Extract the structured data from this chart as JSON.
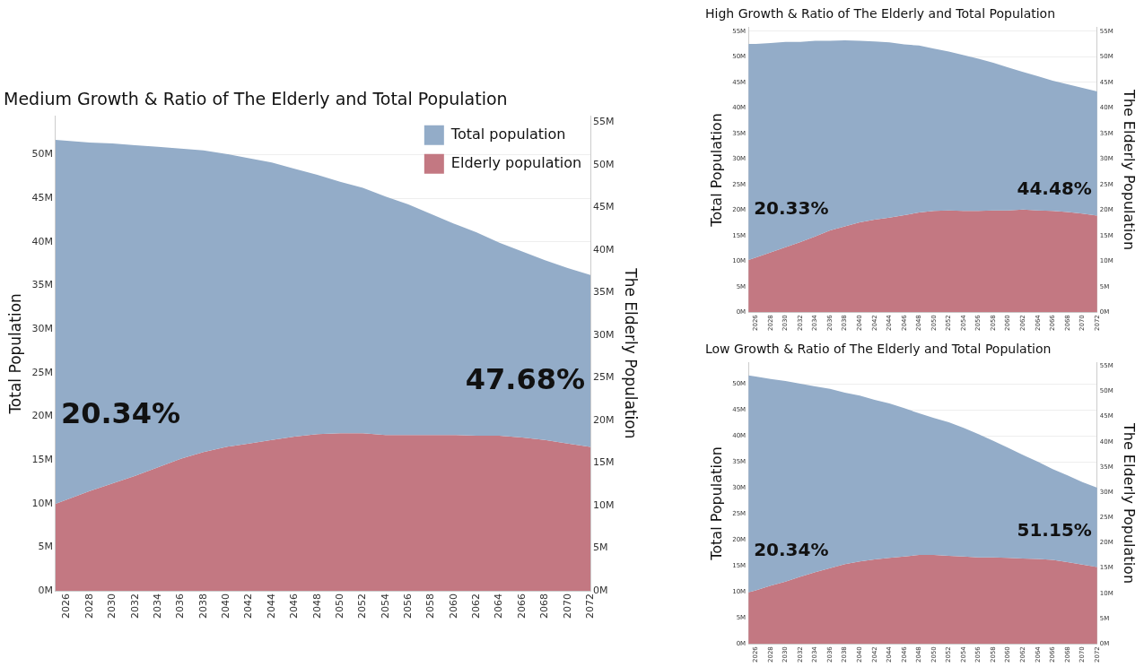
{
  "chart_data": [
    {
      "type": "area",
      "title": "Medium Growth & Ratio of The Elderly and Total Population",
      "ylabel": "Total Population",
      "y2label": "The Elderly Population",
      "legend": "top right",
      "grid": "y",
      "marker": "none",
      "x": [
        2025,
        2026,
        2028,
        2030,
        2032,
        2034,
        2036,
        2038,
        2040,
        2042,
        2044,
        2046,
        2048,
        2050,
        2052,
        2054,
        2056,
        2058,
        2060,
        2062,
        2064,
        2066,
        2068,
        2070,
        2072
      ],
      "xlim": [
        2025,
        2072
      ],
      "xticks": [
        2026,
        2028,
        2030,
        2032,
        2034,
        2036,
        2038,
        2040,
        2042,
        2044,
        2046,
        2048,
        2050,
        2052,
        2054,
        2056,
        2058,
        2060,
        2062,
        2064,
        2066,
        2068,
        2070,
        2072
      ],
      "ylim": [
        0,
        54.4
      ],
      "yticks": [
        {
          "value": 0,
          "label": "0M"
        },
        {
          "value": 5,
          "label": "5M"
        },
        {
          "value": 10,
          "label": "10M"
        },
        {
          "value": 15,
          "label": "15M"
        },
        {
          "value": 20,
          "label": "20M"
        },
        {
          "value": 25,
          "label": "25M"
        },
        {
          "value": 30,
          "label": "30M"
        },
        {
          "value": 35,
          "label": "35M"
        },
        {
          "value": 40,
          "label": "40M"
        },
        {
          "value": 45,
          "label": "45M"
        },
        {
          "value": 50,
          "label": "50M"
        }
      ],
      "y2lim": [
        0,
        55.7
      ],
      "y2ticks": [
        {
          "value": 0,
          "label": "0M"
        },
        {
          "value": 5,
          "label": "5M"
        },
        {
          "value": 10,
          "label": "10M"
        },
        {
          "value": 15,
          "label": "15M"
        },
        {
          "value": 20,
          "label": "20M"
        },
        {
          "value": 25,
          "label": "25M"
        },
        {
          "value": 30,
          "label": "30M"
        },
        {
          "value": 35,
          "label": "35M"
        },
        {
          "value": 40,
          "label": "40M"
        },
        {
          "value": 45,
          "label": "45M"
        },
        {
          "value": 50,
          "label": "50M"
        },
        {
          "value": 55,
          "label": "55M"
        }
      ],
      "series": [
        {
          "name": "Total population",
          "color": "#93acc8",
          "values": [
            51.7,
            51.6,
            51.4,
            51.3,
            51.1,
            50.9,
            50.7,
            50.5,
            50.1,
            49.6,
            49.1,
            48.4,
            47.7,
            46.9,
            46.2,
            45.2,
            44.3,
            43.2,
            42.1,
            41.1,
            39.9,
            38.9,
            37.9,
            37.0,
            36.2
          ]
        },
        {
          "name": "Elderly population",
          "color": "#c37882",
          "axis": "y2",
          "values": [
            10.2,
            10.7,
            11.7,
            12.6,
            13.5,
            14.5,
            15.5,
            16.3,
            16.9,
            17.3,
            17.7,
            18.1,
            18.4,
            18.5,
            18.5,
            18.3,
            18.3,
            18.3,
            18.3,
            18.2,
            18.2,
            18.0,
            17.7,
            17.3,
            16.9
          ]
        }
      ],
      "annotations": [
        "20.34%",
        "47.68%"
      ]
    },
    {
      "type": "area",
      "title": "High Growth & Ratio of The Elderly and Total Population",
      "ylabel": "Total Population",
      "y2label": "The Elderly Population",
      "grid": "y",
      "marker": "none",
      "x": [
        2025,
        2026,
        2028,
        2030,
        2032,
        2034,
        2036,
        2038,
        2040,
        2042,
        2044,
        2046,
        2048,
        2050,
        2052,
        2054,
        2056,
        2058,
        2060,
        2062,
        2064,
        2066,
        2068,
        2070,
        2072
      ],
      "xlim": [
        2025,
        2072
      ],
      "xticks": [
        2026,
        2028,
        2030,
        2032,
        2034,
        2036,
        2038,
        2040,
        2042,
        2044,
        2046,
        2048,
        2050,
        2052,
        2054,
        2056,
        2058,
        2060,
        2062,
        2064,
        2066,
        2068,
        2070,
        2072
      ],
      "ylim": [
        0,
        55.7
      ],
      "yticks": [
        {
          "value": 0,
          "label": "0M"
        },
        {
          "value": 5,
          "label": "5M"
        },
        {
          "value": 10,
          "label": "10M"
        },
        {
          "value": 15,
          "label": "15M"
        },
        {
          "value": 20,
          "label": "20M"
        },
        {
          "value": 25,
          "label": "25M"
        },
        {
          "value": 30,
          "label": "30M"
        },
        {
          "value": 35,
          "label": "35M"
        },
        {
          "value": 40,
          "label": "40M"
        },
        {
          "value": 45,
          "label": "45M"
        },
        {
          "value": 50,
          "label": "50M"
        },
        {
          "value": 55,
          "label": "55M"
        }
      ],
      "y2lim": [
        0,
        55.7
      ],
      "y2ticks": [
        {
          "value": 0,
          "label": "0M"
        },
        {
          "value": 5,
          "label": "5M"
        },
        {
          "value": 10,
          "label": "10M"
        },
        {
          "value": 15,
          "label": "15M"
        },
        {
          "value": 20,
          "label": "20M"
        },
        {
          "value": 25,
          "label": "25M"
        },
        {
          "value": 30,
          "label": "30M"
        },
        {
          "value": 35,
          "label": "35M"
        },
        {
          "value": 40,
          "label": "40M"
        },
        {
          "value": 45,
          "label": "45M"
        },
        {
          "value": 50,
          "label": "50M"
        },
        {
          "value": 55,
          "label": "55M"
        }
      ],
      "series": [
        {
          "color": "#93acc8",
          "values": [
            52.5,
            52.5,
            52.7,
            52.9,
            52.9,
            53.1,
            53.1,
            53.2,
            53.1,
            53.0,
            52.8,
            52.4,
            52.2,
            51.6,
            51.0,
            50.3,
            49.6,
            48.8,
            47.9,
            47.0,
            46.2,
            45.3,
            44.6,
            43.9,
            43.2
          ]
        },
        {
          "color": "#c37882",
          "axis": "y2",
          "values": [
            10.2,
            10.7,
            11.7,
            12.7,
            13.7,
            14.8,
            16.0,
            16.8,
            17.6,
            18.1,
            18.5,
            19.0,
            19.5,
            19.8,
            19.9,
            19.8,
            19.8,
            19.9,
            19.9,
            20.1,
            19.9,
            19.8,
            19.6,
            19.3,
            18.9
          ]
        }
      ],
      "annotations": [
        "20.33%",
        "44.48%"
      ]
    },
    {
      "type": "area",
      "title": "Low Growth & Ratio of The Elderly and Total Population",
      "ylabel": "Total Population",
      "y2label": "The Elderly Population",
      "grid": "y",
      "marker": "none",
      "x": [
        2025,
        2026,
        2028,
        2030,
        2032,
        2034,
        2036,
        2038,
        2040,
        2042,
        2044,
        2046,
        2048,
        2050,
        2052,
        2054,
        2056,
        2058,
        2060,
        2062,
        2064,
        2066,
        2068,
        2070,
        2072
      ],
      "xlim": [
        2025,
        2072
      ],
      "xticks": [
        2026,
        2028,
        2030,
        2032,
        2034,
        2036,
        2038,
        2040,
        2042,
        2044,
        2046,
        2048,
        2050,
        2052,
        2054,
        2056,
        2058,
        2060,
        2062,
        2064,
        2066,
        2068,
        2070,
        2072
      ],
      "ylim": [
        0,
        54
      ],
      "yticks": [
        {
          "value": 0,
          "label": "0M"
        },
        {
          "value": 5,
          "label": "5M"
        },
        {
          "value": 10,
          "label": "10M"
        },
        {
          "value": 15,
          "label": "15M"
        },
        {
          "value": 20,
          "label": "20M"
        },
        {
          "value": 25,
          "label": "25M"
        },
        {
          "value": 30,
          "label": "30M"
        },
        {
          "value": 35,
          "label": "35M"
        },
        {
          "value": 40,
          "label": "40M"
        },
        {
          "value": 45,
          "label": "45M"
        },
        {
          "value": 50,
          "label": "50M"
        }
      ],
      "y2lim": [
        0,
        55.6
      ],
      "y2ticks": [
        {
          "value": 0,
          "label": "0M"
        },
        {
          "value": 5,
          "label": "5M"
        },
        {
          "value": 10,
          "label": "10M"
        },
        {
          "value": 15,
          "label": "15M"
        },
        {
          "value": 20,
          "label": "20M"
        },
        {
          "value": 25,
          "label": "25M"
        },
        {
          "value": 30,
          "label": "30M"
        },
        {
          "value": 35,
          "label": "35M"
        },
        {
          "value": 40,
          "label": "40M"
        },
        {
          "value": 45,
          "label": "45M"
        },
        {
          "value": 50,
          "label": "50M"
        },
        {
          "value": 55,
          "label": "55M"
        }
      ],
      "series": [
        {
          "color": "#93acc8",
          "values": [
            51.6,
            51.4,
            50.9,
            50.5,
            50.0,
            49.5,
            49.0,
            48.3,
            47.7,
            46.9,
            46.2,
            45.3,
            44.3,
            43.4,
            42.6,
            41.5,
            40.3,
            39.0,
            37.7,
            36.3,
            35.0,
            33.6,
            32.4,
            31.1,
            30.0
          ]
        },
        {
          "color": "#c37882",
          "axis": "y2",
          "values": [
            10.2,
            10.6,
            11.5,
            12.3,
            13.3,
            14.2,
            15.0,
            15.8,
            16.3,
            16.7,
            17.0,
            17.3,
            17.6,
            17.6,
            17.4,
            17.3,
            17.1,
            17.1,
            17.0,
            16.9,
            16.8,
            16.6,
            16.2,
            15.7,
            15.2
          ]
        }
      ],
      "annotations": [
        "20.34%",
        "51.15%"
      ]
    }
  ]
}
